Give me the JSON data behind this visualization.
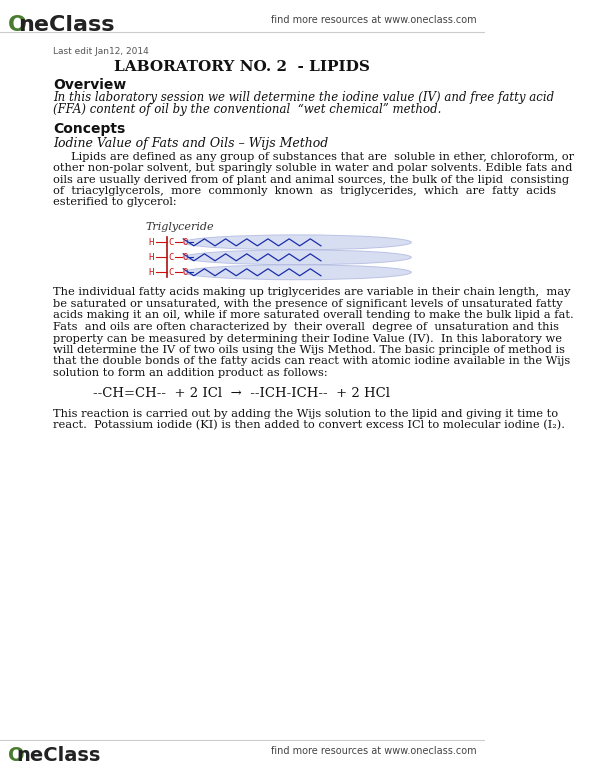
{
  "bg_color": "#ffffff",
  "header_logo_color": "#4a7c2f",
  "header_right_text": "find more resources at www.oneclass.com",
  "footer_logo_color": "#4a7c2f",
  "footer_right_text": "find more resources at www.oneclass.com",
  "last_edit": "Last edit Jan12, 2014",
  "main_title": "LABORATORY NO. 2  - LIPIDS",
  "section1_heading": "Overview",
  "section1_italic_lines": [
    "In this laboratory session we will determine the iodine value (IV) and free fatty acid",
    "(FFA) content of oil by the conventional  “wet chemical” method."
  ],
  "section2_heading": "Concepts",
  "section2_subheading": "Iodine Value of Fats and Oils – Wijs Method",
  "para1_lines": [
    "     Lipids are defined as any group of substances that are  soluble in ether, chloroform, or",
    "other non-polar solvent, but sparingly soluble in water and polar solvents. Edible fats and",
    "oils are usually derived from of plant and animal sources, the bulk of the lipid  consisting",
    "of  triacylglycerols,  more  commonly  known  as  triglycerides,  which  are  fatty  acids",
    "esterified to glycerol:"
  ],
  "triglyceride_label": "Triglyceride",
  "para2_lines": [
    "The individual fatty acids making up triglycerides are variable in their chain length,  may",
    "be saturated or unsaturated, with the presence of significant levels of unsaturated fatty",
    "acids making it an oil, while if more saturated overall tending to make the bulk lipid a fat.",
    "Fats  and oils are often characterized by  their overall  degree of  unsaturation and this",
    "property can be measured by determining their Iodine Value (IV).  In this laboratory we",
    "will determine the IV of two oils using the Wijs Method. The basic principle of method is",
    "that the double bonds of the fatty acids can react with atomic iodine available in the Wijs",
    "solution to form an addition product as follows:"
  ],
  "equation": "--CH=CH--  + 2 ICl  →  --ICH-ICH--  + 2 HCl",
  "para3_lines": [
    "This reaction is carried out by adding the Wijs solution to the lipid and giving it time to",
    "react.  Potassium iodide (KI) is then added to convert excess ICl to molecular iodine (I₂)."
  ]
}
